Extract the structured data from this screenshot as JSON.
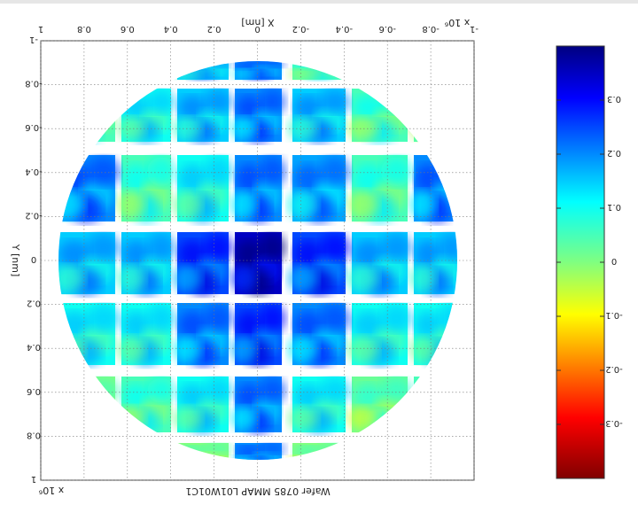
{
  "chart_data": {
    "type": "heatmap",
    "title": "Wafer 0785 MMAP L01W01C1",
    "xlabel": "X [nm]",
    "ylabel": "Y [nm]",
    "x_exponent": "x 10⁶",
    "y_exponent": "x 10⁶",
    "xlim": [
      -1,
      1
    ],
    "ylim": [
      -1,
      1
    ],
    "grid": true,
    "orientation": "image rotated 180 degrees",
    "x_tick_labels": [
      "-1",
      "-0.8",
      "-0.6",
      "-0.4",
      "-0.2",
      "0",
      "0.2",
      "0.4",
      "0.6",
      "0.8",
      "1"
    ],
    "y_tick_labels": [
      "-1",
      "-0.8",
      "-0.6",
      "-0.4",
      "-0.2",
      "0",
      "0.2",
      "0.4",
      "0.6",
      "0.8",
      "1"
    ],
    "die_columns": [
      -0.8,
      -0.5,
      -0.25,
      0,
      0.25,
      0.5,
      0.8
    ],
    "die_rows": [
      -0.8,
      -0.55,
      -0.25,
      0,
      0.25,
      0.55,
      0.8
    ],
    "die_values": [
      [
        null,
        null,
        0.05,
        0.2,
        0.15,
        null,
        null
      ],
      [
        0.05,
        0.05,
        0.15,
        0.2,
        0.15,
        0.1,
        0.05
      ],
      [
        0.2,
        0.05,
        0.18,
        0.2,
        0.1,
        0.05,
        0.2
      ],
      [
        0.15,
        0.15,
        0.25,
        0.35,
        0.25,
        0.15,
        0.15
      ],
      [
        0.1,
        0.1,
        0.2,
        0.25,
        0.2,
        0.1,
        0.1
      ],
      [
        0.05,
        0.02,
        0.1,
        0.2,
        0.1,
        0.05,
        0.0
      ],
      [
        null,
        -0.05,
        0.0,
        0.2,
        0.0,
        -0.05,
        null
      ]
    ],
    "colorbar": {
      "min": -0.4,
      "max": 0.4,
      "colormap": "jet",
      "tick_values": [
        0.3,
        0.2,
        0.1,
        0,
        -0.1,
        -0.2,
        -0.3
      ],
      "tick_labels": [
        "0.3",
        "0.2",
        "0.1",
        "0",
        "-0.1",
        "-0.2",
        "-0.3"
      ]
    }
  }
}
